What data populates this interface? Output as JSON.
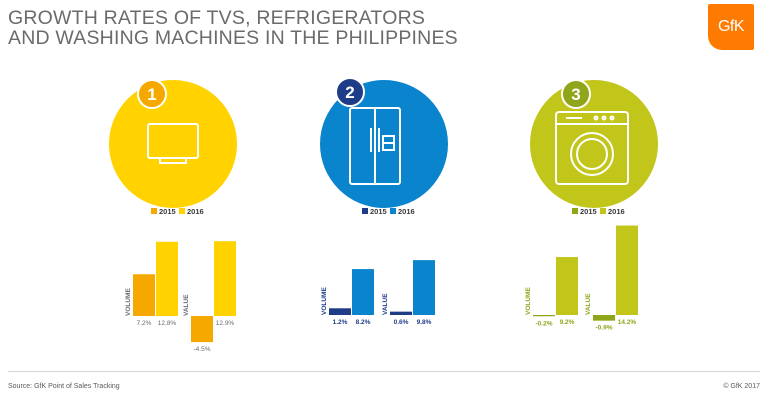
{
  "title": {
    "line1": "GROWTH RATES OF TVS, REFRIGERATORS",
    "line2": "AND WASHING MACHINES IN THE PHILIPPINES"
  },
  "logo": "GfK",
  "footer": {
    "source": "Source: GfK Point of Sales Tracking",
    "copyright": "© GfK 2017"
  },
  "chart_data": [
    {
      "type": "bar",
      "badge": "1",
      "icon": "tv-icon",
      "colors": {
        "2015": "#f5a800",
        "2016": "#ffd200"
      },
      "series_names": [
        "2015",
        "2016"
      ],
      "groups": [
        {
          "label": "VOLUME",
          "values": [
            7.2,
            12.8
          ],
          "labels": [
            "7.2%",
            "12.8%"
          ]
        },
        {
          "label": "VALUE",
          "values": [
            -4.5,
            12.9
          ],
          "labels": [
            "-4.5%",
            "12.9%"
          ]
        }
      ]
    },
    {
      "type": "bar",
      "badge": "2",
      "icon": "refrigerator-icon",
      "colors": {
        "2015": "#1f3c88",
        "2016": "#0a84cc"
      },
      "series_names": [
        "2015",
        "2016"
      ],
      "groups": [
        {
          "label": "VOLUME",
          "values": [
            1.2,
            8.2
          ],
          "labels": [
            "1.2%",
            "8.2%"
          ]
        },
        {
          "label": "VALUE",
          "values": [
            0.6,
            9.8
          ],
          "labels": [
            "0.6%",
            "9.8%"
          ]
        }
      ]
    },
    {
      "type": "bar",
      "badge": "3",
      "icon": "washing-machine-icon",
      "colors": {
        "2015": "#8fa61a",
        "2016": "#c2c51a"
      },
      "series_names": [
        "2015",
        "2016"
      ],
      "groups": [
        {
          "label": "VOLUME",
          "values": [
            -0.2,
            9.2
          ],
          "labels": [
            "-0.2%",
            "9.2%"
          ]
        },
        {
          "label": "VALUE",
          "values": [
            -0.9,
            14.2
          ],
          "labels": [
            "-0.9%",
            "14.2%"
          ]
        }
      ]
    }
  ]
}
